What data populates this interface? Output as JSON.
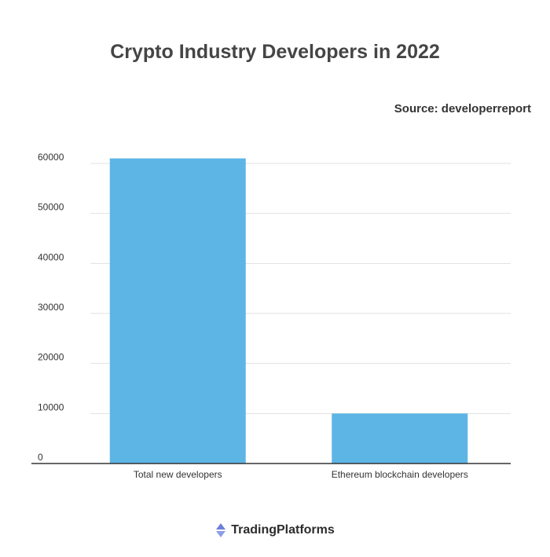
{
  "title": "Crypto Industry Developers in 2022",
  "source": "Source: developerreport",
  "brand": {
    "name": "TradingPlatforms",
    "icon": "tradingplatforms-logo-icon"
  },
  "colors": {
    "bar": "#5db5e5",
    "grid": "#e1e1e1",
    "axis": "#333333"
  },
  "chart_data": {
    "type": "bar",
    "title": "Crypto Industry Developers in 2022",
    "categories": [
      "Total new developers",
      "Ethereum blockchain developers"
    ],
    "values": [
      61000,
      10000
    ],
    "yticks": [
      0,
      10000,
      20000,
      30000,
      40000,
      50000,
      60000
    ],
    "ylim": [
      0,
      60000
    ],
    "grid": true,
    "legend": "none"
  }
}
